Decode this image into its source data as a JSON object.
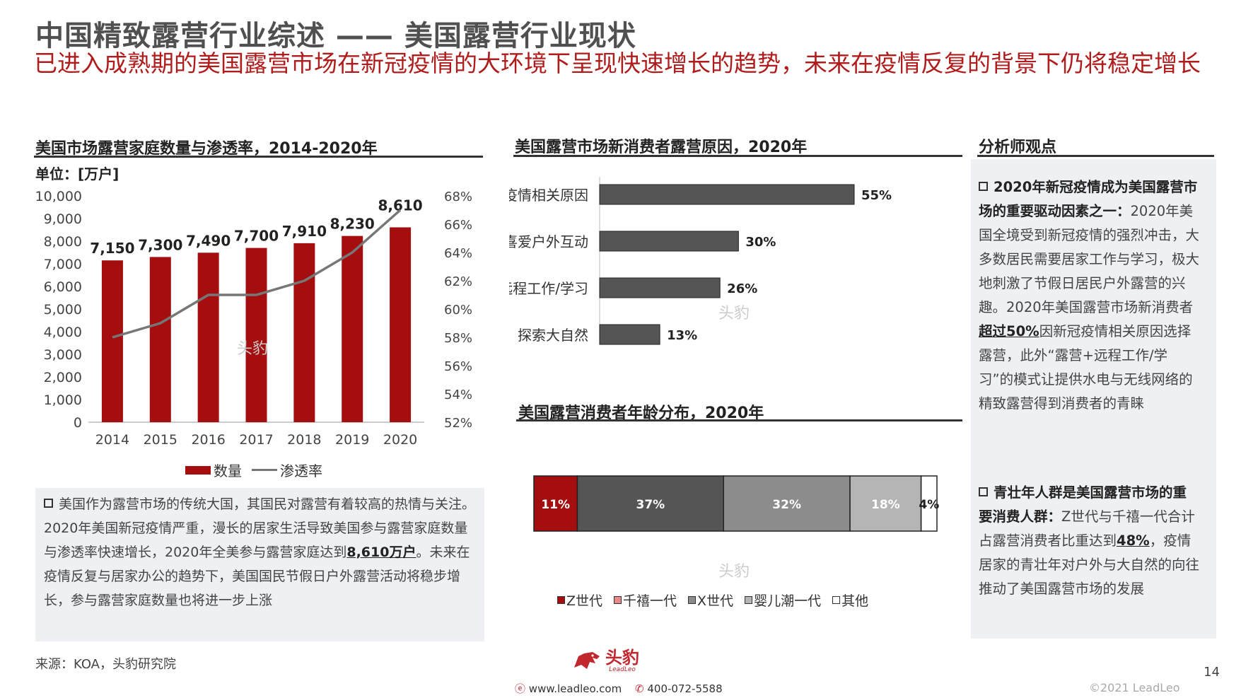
{
  "header": {
    "title": "中国精致露营行业综述 —— 美国露营行业现状",
    "subtitle": "已进入成熟期的美国露营市场在新冠疫情的大环境下呈现快速增长的趋势，未来在疫情反复的背景下仍将稳定增长"
  },
  "colors": {
    "accent_red": "#a50e0e",
    "dark_gray": "#555555",
    "mid_gray": "#8c8c8c",
    "light_gray": "#b5b5b5",
    "white": "#ffffff"
  },
  "chart_data": [
    {
      "type": "bar",
      "title": "美国市场露营家庭数量与渗透率，2014-2020年",
      "unit_label": "单位：[万户]",
      "categories": [
        "2014",
        "2015",
        "2016",
        "2017",
        "2018",
        "2019",
        "2020"
      ],
      "series": [
        {
          "name": "数量",
          "type": "bar",
          "axis": "left",
          "values": [
            7150,
            7300,
            7490,
            7700,
            7910,
            8230,
            8610
          ],
          "labels": [
            "7,150",
            "7,300",
            "7,490",
            "7,700",
            "7,910",
            "8,230",
            "8,610"
          ]
        },
        {
          "name": "渗透率",
          "type": "line",
          "axis": "right",
          "values": [
            58,
            59,
            61,
            61,
            62,
            64,
            67
          ]
        }
      ],
      "ylim_left": [
        0,
        10000
      ],
      "yticks_left": [
        "0",
        "1,000",
        "2,000",
        "3,000",
        "4,000",
        "5,000",
        "6,000",
        "7,000",
        "8,000",
        "9,000",
        "10,000"
      ],
      "ylim_right": [
        52,
        68
      ],
      "yticks_right": [
        "52%",
        "54%",
        "56%",
        "58%",
        "60%",
        "62%",
        "64%",
        "66%",
        "68%"
      ],
      "legend_position": "bottom",
      "grid": false
    },
    {
      "type": "bar",
      "orientation": "horizontal",
      "title": "美国露营市场新消费者露营原因，2020年",
      "categories": [
        "新冠疫情相关原因",
        "喜爱户外互动",
        "露营时远程工作/学习",
        "探索大自然"
      ],
      "values": [
        55,
        30,
        26,
        13
      ],
      "labels": [
        "55%",
        "30%",
        "26%",
        "13%"
      ],
      "xlim": [
        0,
        60
      ],
      "grid": false
    },
    {
      "type": "bar",
      "orientation": "stacked-100",
      "title": "美国露营消费者年龄分布，2020年",
      "categories": [
        "Z世代",
        "千禧一代",
        "X世代",
        "婴儿潮一代",
        "其他"
      ],
      "values": [
        11,
        37,
        32,
        18,
        4
      ],
      "labels": [
        "11%",
        "37%",
        "32%",
        "18%",
        "4%"
      ],
      "colors": [
        "#a50e0e",
        "#555555",
        "#8c8c8c",
        "#b5b5b5",
        "#ffffff"
      ],
      "legend_position": "bottom"
    }
  ],
  "left_note": {
    "p1": "美国作为露营市场的传统大国，其国民对露营有着较高的热情与关注。2020年美国新冠疫情严重，漫长的居家生活导致美国参与露营家庭数量与渗透率快速增长，2020年全美参与露营家庭达到",
    "hl": "8,610万户",
    "p2": "。未来在疫情反复与居家办公的趋势下，美国国民节假日户外露营活动将稳步增长，参与露营家庭数量也将进一步上涨"
  },
  "analyst": {
    "title": "分析师观点",
    "point1_head": "2020年新冠疫情成为美国露营市场的重要驱动因素之一：",
    "point1_a": "2020年美国全境受到新冠疫情的强烈冲击，大多数居民需要居家工作与学习，极大地刺激了节假日居民户外露营的兴趣。2020年美国露营市场新消费者",
    "point1_hl": "超过50%",
    "point1_b": "因新冠疫情相关原因选择露营，此外“露营+远程工作/学习”的模式让提供水电与无线网络的精致露营得到消费者的青睐",
    "point2_head": "青壮年人群是美国露营市场的重要消费人群：",
    "point2_a": "Z世代与千禧一代合计占露营消费者比重达到",
    "point2_hl": "48%",
    "point2_b": "，疫情居家的青壮年对户外与大自然的向往推动了美国露营市场的发展"
  },
  "footer": {
    "source": "来源：KOA，头豹研究院",
    "logo_text": "头豹",
    "logo_sub": "LeadLeo",
    "web": "www.leadleo.com",
    "phone": "400-072-5588",
    "copyright": "©2021 LeadLeo",
    "page": "14"
  },
  "watermark": "头豹"
}
